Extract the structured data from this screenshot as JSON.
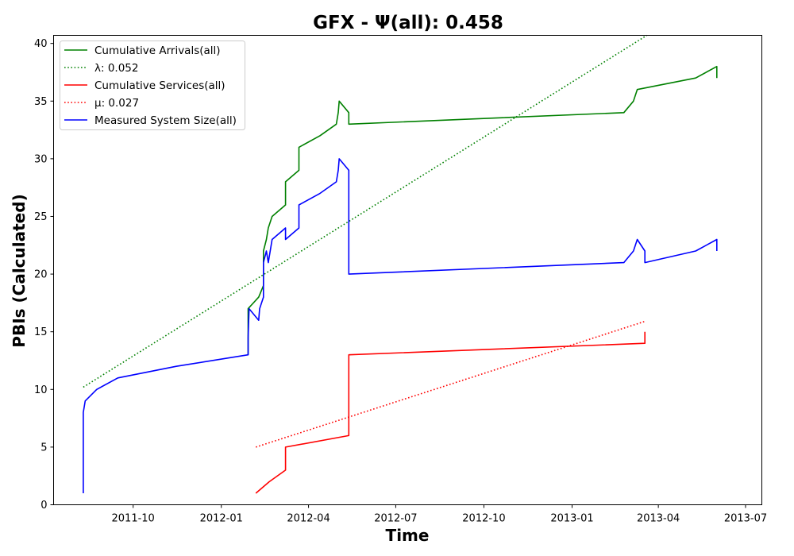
{
  "chart_data": {
    "type": "line",
    "title": "GFX -  Ψ(all): 0.458",
    "xlabel": "Time",
    "ylabel": "PBIs (Calculated)",
    "x_type": "date",
    "xlim": [
      "2011-07-10",
      "2013-07-18"
    ],
    "ylim": [
      0,
      40.7
    ],
    "x_ticks": [
      "2011-10-01",
      "2012-01-01",
      "2012-04-01",
      "2012-07-01",
      "2012-10-01",
      "2013-01-01",
      "2013-04-01",
      "2013-07-01"
    ],
    "x_tick_labels": [
      "2011-10",
      "2012-01",
      "2012-04",
      "2012-07",
      "2012-10",
      "2013-01",
      "2013-04",
      "2013-07"
    ],
    "y_ticks": [
      0,
      5,
      10,
      15,
      20,
      25,
      30,
      35,
      40
    ],
    "grid": false,
    "legend_position": "top-left",
    "series": [
      {
        "name": "Cumulative Arrivals(all)",
        "color": "#008000",
        "style": "solid",
        "x": [
          "2012-01-29",
          "2012-01-29",
          "2012-02-09",
          "2012-02-14",
          "2012-02-14",
          "2012-02-17",
          "2012-02-19",
          "2012-02-23",
          "2012-03-08",
          "2012-03-08",
          "2012-03-22",
          "2012-03-22",
          "2012-04-13",
          "2012-04-30",
          "2012-05-02",
          "2012-05-03",
          "2012-05-13",
          "2012-05-13",
          "2013-02-24",
          "2013-03-06",
          "2013-03-10",
          "2013-05-10",
          "2013-06-01",
          "2013-06-01"
        ],
        "values": [
          13,
          17,
          18,
          19,
          22,
          23,
          24,
          25,
          26,
          28,
          29,
          31,
          32,
          33,
          34,
          35,
          34,
          33,
          34,
          35,
          36,
          37,
          38,
          37
        ]
      },
      {
        "name": "λ: 0.052",
        "color": "#008000",
        "style": "dotted",
        "x": [
          "2011-08-10",
          "2013-03-20"
        ],
        "values": [
          10.2,
          40.7
        ]
      },
      {
        "name": "Cumulative Services(all)",
        "color": "#ff0000",
        "style": "solid",
        "x": [
          "2012-02-06",
          "2012-02-20",
          "2012-03-08",
          "2012-03-08",
          "2012-05-13",
          "2012-05-13",
          "2013-03-18",
          "2013-03-18"
        ],
        "values": [
          1,
          2,
          3,
          5,
          6,
          13,
          14,
          15
        ]
      },
      {
        "name": "μ: 0.027",
        "color": "#ff0000",
        "style": "dotted",
        "x": [
          "2012-02-06",
          "2013-03-18"
        ],
        "values": [
          5,
          15.9
        ]
      },
      {
        "name": "Measured System Size(all)",
        "color": "#0000ff",
        "style": "solid",
        "x": [
          "2011-08-10",
          "2011-08-10",
          "2011-08-12",
          "2011-08-24",
          "2011-09-15",
          "2011-11-15",
          "2012-01-29",
          "2012-01-29",
          "2012-01-30",
          "2012-02-09",
          "2012-02-10",
          "2012-02-14",
          "2012-02-14",
          "2012-02-17",
          "2012-02-19",
          "2012-02-23",
          "2012-03-08",
          "2012-03-08",
          "2012-03-22",
          "2012-03-22",
          "2012-04-13",
          "2012-04-30",
          "2012-05-02",
          "2012-05-03",
          "2012-05-13",
          "2012-05-13",
          "2013-02-24",
          "2013-03-06",
          "2013-03-10",
          "2013-03-18",
          "2013-03-18",
          "2013-05-10",
          "2013-06-01",
          "2013-06-01"
        ],
        "values": [
          1,
          8,
          9,
          10,
          11,
          12,
          13,
          14.5,
          17,
          16,
          17,
          18,
          21,
          22,
          21,
          23,
          24,
          23,
          24,
          26,
          27,
          28,
          29,
          30,
          29,
          20,
          21,
          22,
          23,
          22,
          21,
          22,
          23,
          22
        ]
      }
    ]
  }
}
